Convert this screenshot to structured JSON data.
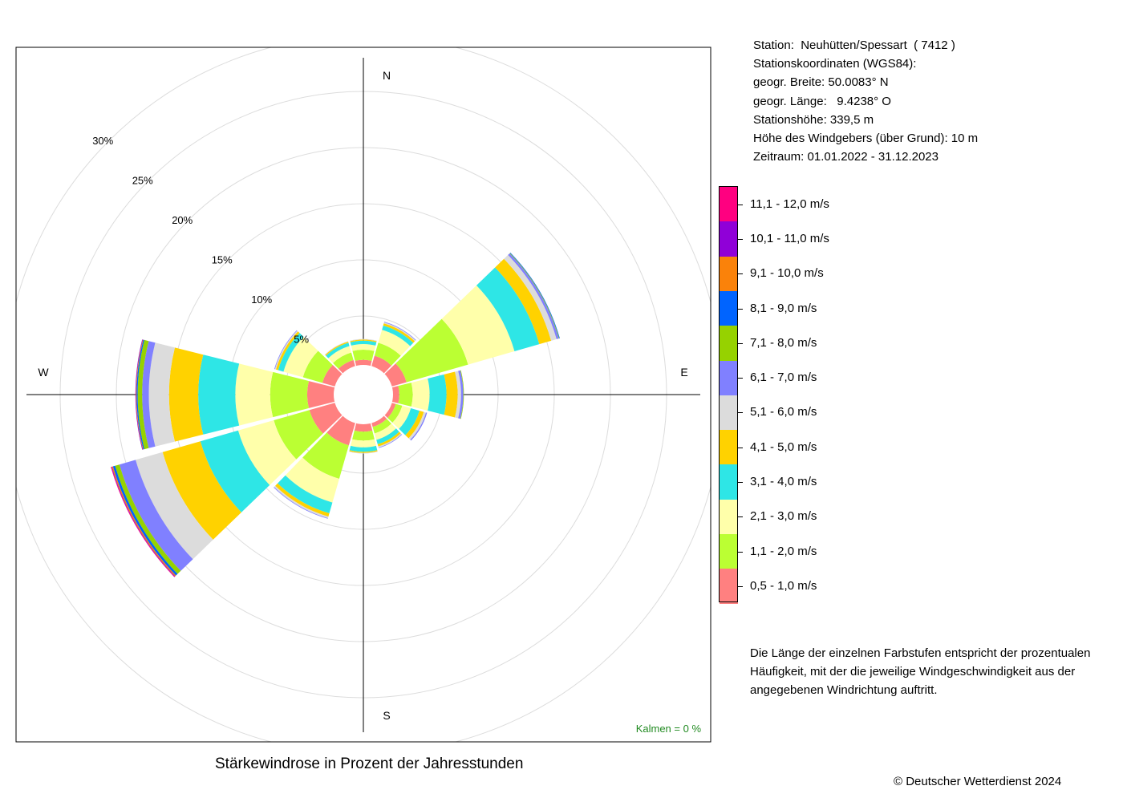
{
  "station_info": [
    "Station:  Neuhütten/Spessart  ( 7412 )",
    "Stationskoordinaten (WGS84):",
    "geogr. Breite: 50.0083° N",
    "geogr. Länge:   9.4238° O",
    "Stationshöhe: 339,5 m",
    "Höhe des Windgebers (über Grund): 10 m",
    "Zeitraum: 01.01.2022 - 31.12.2023"
  ],
  "legend": [
    {
      "label": "11,1 - 12,0 m/s",
      "color": "#ff0080"
    },
    {
      "label": "10,1 - 11,0 m/s",
      "color": "#9000d8"
    },
    {
      "label": "9,1 - 10,0 m/s",
      "color": "#fa820a"
    },
    {
      "label": "8,1 - 9,0 m/s",
      "color": "#0064ff"
    },
    {
      "label": "7,1 - 8,0 m/s",
      "color": "#96d200"
    },
    {
      "label": "6,1 - 7,0 m/s",
      "color": "#8080ff"
    },
    {
      "label": "5,1 - 6,0 m/s",
      "color": "#dcdcdc"
    },
    {
      "label": "4,1 - 5,0 m/s",
      "color": "#ffd200"
    },
    {
      "label": "3,1 - 4,0 m/s",
      "color": "#2ee6e6"
    },
    {
      "label": "2,1 - 3,0 m/s",
      "color": "#ffffaa"
    },
    {
      "label": "1,1 - 2,0 m/s",
      "color": "#bbff33"
    },
    {
      "label": "0,5 - 1,0 m/s",
      "color": "#ff8080"
    }
  ],
  "note": "Die Länge der einzelnen Farbstufen entspricht der prozentualen Häufigkeit, mit der die jeweilige Windgeschwindigkeit aus der angegebenen Windrichtung auftritt.",
  "caption": "Stärkewindrose in Prozent der Jahresstunden",
  "copyright": "© Deutscher Wetterdienst  2024",
  "calm_label": "Kalmen  =  0 %",
  "compass": {
    "n": "N",
    "e": "E",
    "s": "S",
    "w": "W"
  },
  "chart_data": {
    "type": "wind-rose",
    "unit": "%",
    "directions_deg": [
      0,
      30,
      60,
      90,
      120,
      150,
      180,
      210,
      240,
      270,
      300,
      330
    ],
    "speed_classes": [
      "0,5 - 1,0 m/s",
      "1,1 - 2,0 m/s",
      "2,1 - 3,0 m/s",
      "3,1 - 4,0 m/s",
      "4,1 - 5,0 m/s",
      "5,1 - 6,0 m/s",
      "6,1 - 7,0 m/s",
      "7,1 - 8,0 m/s",
      "8,1 - 9,0 m/s",
      "9,1 - 10,0 m/s",
      "10,1 - 11,0 m/s",
      "11,1 - 12,0 m/s"
    ],
    "colors": [
      "#ff8080",
      "#bbff33",
      "#ffffaa",
      "#2ee6e6",
      "#ffd200",
      "#dcdcdc",
      "#8080ff",
      "#96d200",
      "#0064ff",
      "#fa820a",
      "#9000d8",
      "#ff0080"
    ],
    "values": [
      [
        1.1,
        0.9,
        0.5,
        0.3,
        0.1,
        0.05,
        0,
        0,
        0,
        0,
        0,
        0
      ],
      [
        1.6,
        1.2,
        1.2,
        0.4,
        0.2,
        0.1,
        0.05,
        0,
        0,
        0,
        0,
        0
      ],
      [
        2.0,
        5.7,
        4.3,
        2.3,
        1.1,
        0.5,
        0.2,
        0.05,
        0.05,
        0,
        0,
        0
      ],
      [
        1.2,
        1.2,
        1.5,
        1.5,
        1.0,
        0.3,
        0.2,
        0.05,
        0,
        0,
        0,
        0
      ],
      [
        1.0,
        0.6,
        0.8,
        0.8,
        0.4,
        0.2,
        0.1,
        0,
        0,
        0,
        0,
        0
      ],
      [
        1.0,
        0.6,
        0.6,
        0.4,
        0.2,
        0.1,
        0.05,
        0,
        0,
        0,
        0,
        0
      ],
      [
        1.3,
        0.8,
        0.6,
        0.4,
        0.1,
        0.05,
        0,
        0,
        0,
        0,
        0,
        0
      ],
      [
        2.7,
        3.1,
        2.2,
        1.0,
        0.3,
        0.15,
        0.05,
        0,
        0,
        0,
        0,
        0
      ],
      [
        3.0,
        3.3,
        3.3,
        3.5,
        3.5,
        2.5,
        1.5,
        0.4,
        0.2,
        0.1,
        0.05,
        0.05
      ],
      [
        3.0,
        3.3,
        3.1,
        3.3,
        2.6,
        1.8,
        0.6,
        0.4,
        0.1,
        0.05,
        0.05,
        0
      ],
      [
        1.8,
        1.8,
        1.8,
        0.5,
        0.2,
        0.1,
        0.05,
        0,
        0,
        0,
        0,
        0
      ],
      [
        1.2,
        0.7,
        0.6,
        0.3,
        0.1,
        0.05,
        0,
        0,
        0,
        0,
        0,
        0
      ]
    ],
    "radial_ticks": [
      5,
      10,
      15,
      20,
      25,
      30
    ],
    "radial_tick_labels": [
      "5%",
      "10%",
      "15%",
      "20%",
      "25%",
      "30%"
    ],
    "rmax": 30,
    "inner_hole_pct": 2,
    "calm_pct": 0
  }
}
